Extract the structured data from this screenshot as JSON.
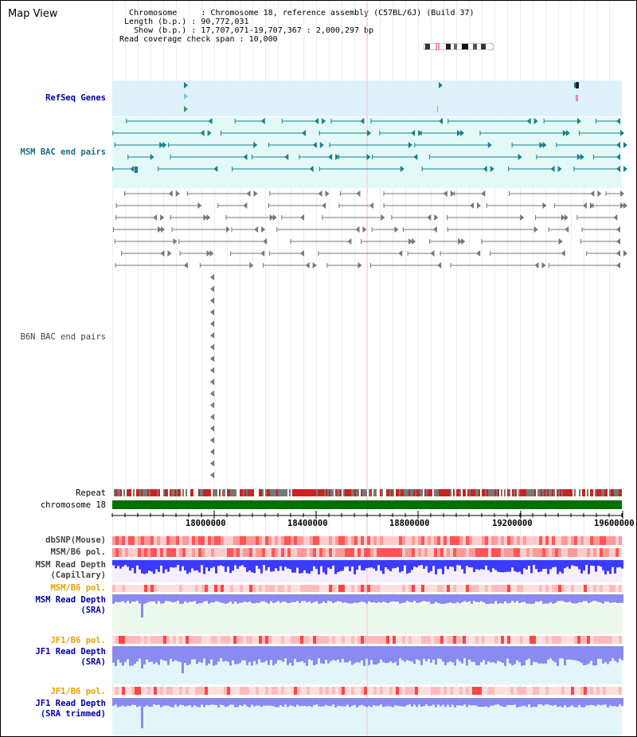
{
  "page": {
    "title": "Map View"
  },
  "info": {
    "chromosome_label": "Chromosome",
    "chromosome_value": "Chromosome 18, reference assembly (C57BL/6J) (Build 37)",
    "length_label": "Length (b.p.)",
    "length_value": "90,772,031",
    "show_label": "Show (b.p.)",
    "show_value": "17,707,071-19,707,367 : 2,000,297 bp",
    "coverage_label": "Read coverage check span",
    "coverage_value": "10,000"
  },
  "tracks": {
    "refseq": "RefSeq Genes",
    "msm_bac": "MSM BAC end pairs",
    "b6n_bac": "B6N BAC end pairs",
    "repeat": "Repeat",
    "chromosome": "chromosome 18",
    "dbsnp": "dbSNP(Mouse)",
    "msm_b6_pol": "MSM/B6 pol.",
    "msm_depth_cap_1": "MSM Read Depth",
    "msm_depth_cap_2": "(Capillary)",
    "msm_b6_pol_2": "MSM/B6 pol.",
    "msm_depth_sra_1": "MSM Read Depth",
    "msm_depth_sra_2": "(SRA)",
    "jf1_b6_pol": "JF1/B6 pol.",
    "jf1_depth_sra_1": "JF1 Read Depth",
    "jf1_depth_sra_2": "(SRA)",
    "jf1_b6_pol_2": "JF1/B6 pol.",
    "jf1_depth_trim_1": "JF1 Read Depth",
    "jf1_depth_trim_2": "(SRA trimmed)"
  },
  "ruler": {
    "ticks": [
      "18000000",
      "18400000",
      "18800000",
      "19200000",
      "19600000"
    ]
  },
  "colors": {
    "refseq_band": "#dff1fa",
    "msm_band": "#e3f9f7",
    "teal": "#1a7f8e",
    "gray_feature": "#777777",
    "chromosome": "#007000",
    "label_blue": "#0000aa",
    "label_teal": "#1a6f80",
    "label_orange": "#e8a000",
    "depth_blue": "#3b3bff",
    "depth_light": "#8a8af0",
    "pol_red": "#ff7777"
  }
}
